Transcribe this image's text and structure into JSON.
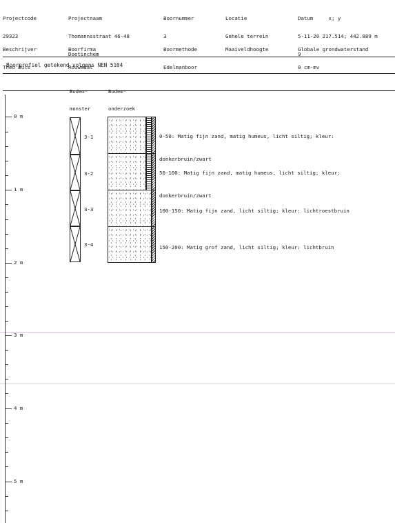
{
  "header": {
    "projectcode_label": "Projectcode",
    "projectcode_value": "29323",
    "projectnaam_label": "Projectnaam",
    "projectnaam_value": "Thomannsstraat 46-48",
    "projectnaam_place": "Doetinchem",
    "boornummer_label": "Boornummer",
    "boornummer_value": "3",
    "locatie_label": "Locatie",
    "locatie_value": "Gehele terrein",
    "datum_label": "Datum     x; y",
    "datum_value": "5-11-20 217.514; 442.889 m",
    "datum_extra": "9",
    "beschrijver_label": "Beschrijver",
    "beschrijver_value": "Theo Buls",
    "boorfirma_label": "Boorfirma",
    "boorfirma_value": "Rouwmaat",
    "boormethode_label": "Boormethode",
    "boormethode_value": "Edelmanboor",
    "maaiveld_label": "Maaiveldhoogte",
    "grondwater_label": "Globale grondwaterstand",
    "grondwater_value": "0 cm-mv"
  },
  "subtitle": "Boorprofiel getekend volgens NEN 5104",
  "columns": {
    "bodemmonster_1": "Bodem-",
    "bodemmonster_2": "monster",
    "bodemonderzoek_1": "Bodem-",
    "bodemonderzoek_2": "onderzoek"
  },
  "depth_labels": {
    "d0": "0 m",
    "d1": "1 m",
    "d2": "2 m",
    "d3": "3 m",
    "d4": "4 m",
    "d5": "5 m"
  },
  "samples": [
    {
      "label": "3-1"
    },
    {
      "label": "3-2"
    },
    {
      "label": "3-3"
    },
    {
      "label": "3-4"
    }
  ],
  "layers": [
    {
      "line1": "0-50: Matig fijn zand, matig humeus, licht siltig; kleur:",
      "line2": "donkerbruin/zwart"
    },
    {
      "line1": "50-100: Matig fijn zand, matig humeus, licht siltig; kleur:",
      "line2": "donkerbruin/zwart"
    },
    {
      "line1": "100-150: Matig fijn zand, licht siltig; kleur: lichtroestbruin",
      "line2": ""
    },
    {
      "line1": "150-200: Matig grof zand, licht siltig; kleur: lichtbruin",
      "line2": ""
    }
  ],
  "colors": {
    "line": "#222222",
    "band": "#d9b8e6"
  }
}
